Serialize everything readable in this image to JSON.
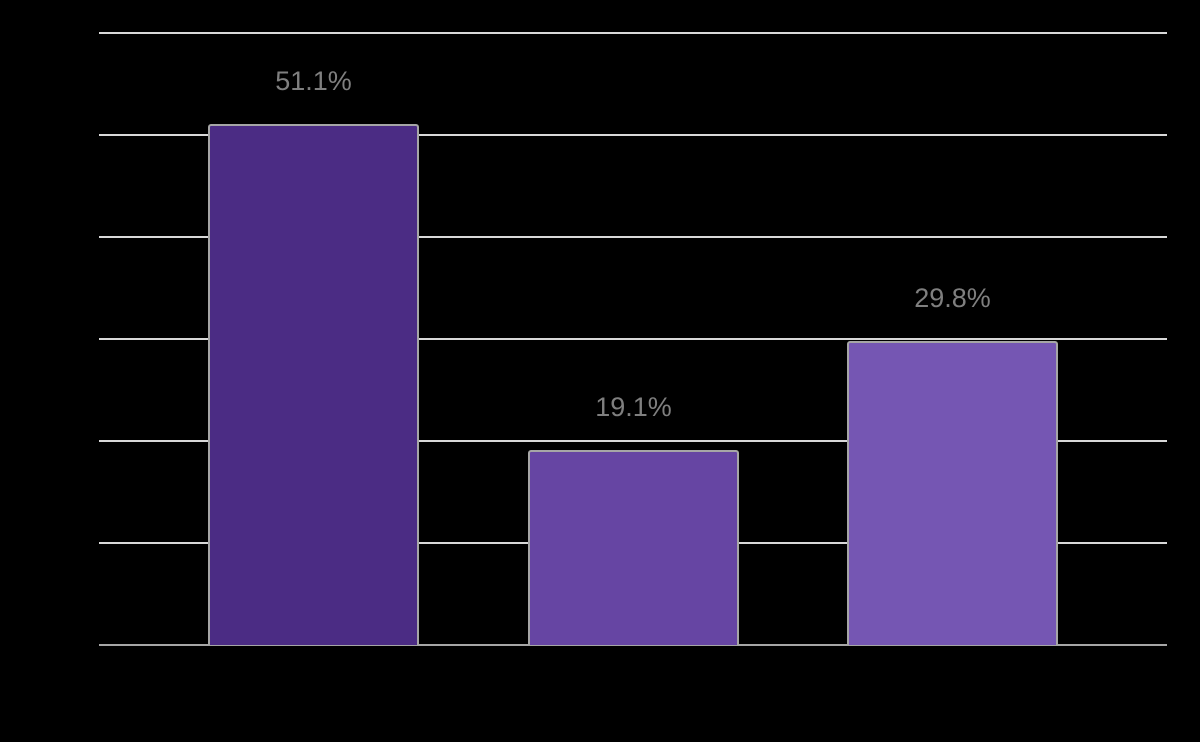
{
  "chart_data": {
    "type": "bar",
    "title": "",
    "xlabel": "",
    "ylabel": "",
    "categories": [
      "",
      "",
      ""
    ],
    "values": [
      51.1,
      19.1,
      29.8
    ],
    "value_labels": [
      "51.1%",
      "19.1%",
      "29.8%"
    ],
    "colors": [
      "#4b2c84",
      "#6645a3",
      "#7556b3"
    ],
    "ylim": [
      0,
      60
    ],
    "ytick_step": 10,
    "grid": true,
    "legend": null,
    "background": "#000000",
    "gridline_color": "#d9d9d9",
    "label_color": "#7f7f7f"
  }
}
